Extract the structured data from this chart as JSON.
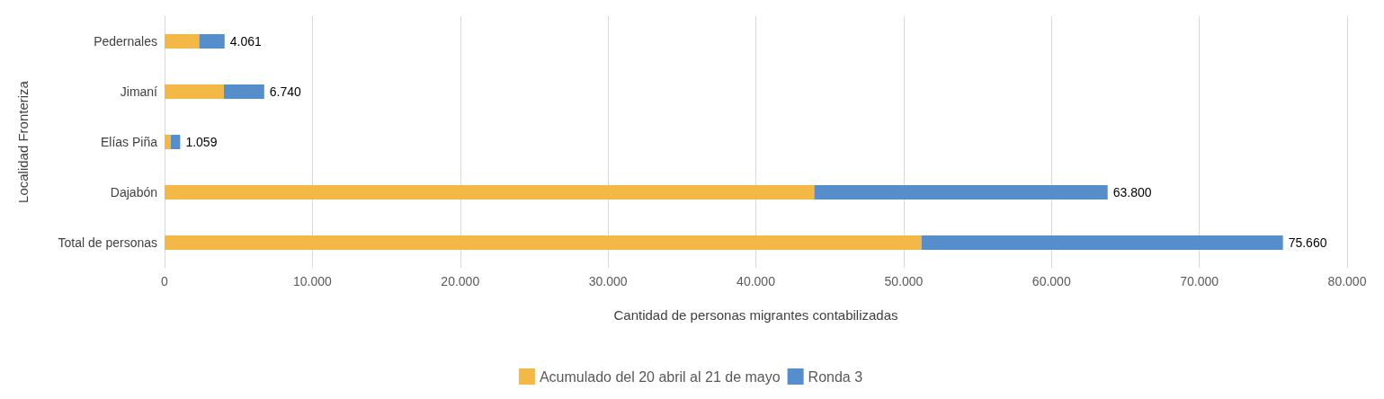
{
  "chart_data": {
    "type": "bar",
    "orientation": "horizontal",
    "stacked": true,
    "categories": [
      "Pedernales",
      "Jimaní",
      "Elías Piña",
      "Dajabón",
      "Total de personas"
    ],
    "series": [
      {
        "name": "Acumulado del 20 abril al 21 de mayo",
        "color": "#f4b847",
        "values": [
          2340,
          4010,
          420,
          43950,
          51200
        ]
      },
      {
        "name": "Ronda 3",
        "color": "#568dcb",
        "values": [
          1721,
          2730,
          639,
          19850,
          24460
        ]
      }
    ],
    "totals": [
      "4.061",
      "6.740",
      "1.059",
      "63.800",
      "75.660"
    ],
    "xlabel": "Cantidad de personas migrantes contabilizadas",
    "ylabel": "Localidad Fronteriza",
    "xlim": [
      0,
      80000
    ],
    "xticks": [
      0,
      {
        "value": 10000,
        "label": "10.000"
      },
      {
        "value": 20000,
        "label": "20.000"
      },
      {
        "value": 30000,
        "label": "30.000"
      },
      {
        "value": 40000,
        "label": "40.000"
      },
      {
        "value": 50000,
        "label": "50.000"
      },
      {
        "value": 60000,
        "label": "60.000"
      },
      {
        "value": 70000,
        "label": "70.000"
      },
      {
        "value": 80000,
        "label": "80.000"
      }
    ],
    "grid": "x",
    "legend": "bottom"
  }
}
